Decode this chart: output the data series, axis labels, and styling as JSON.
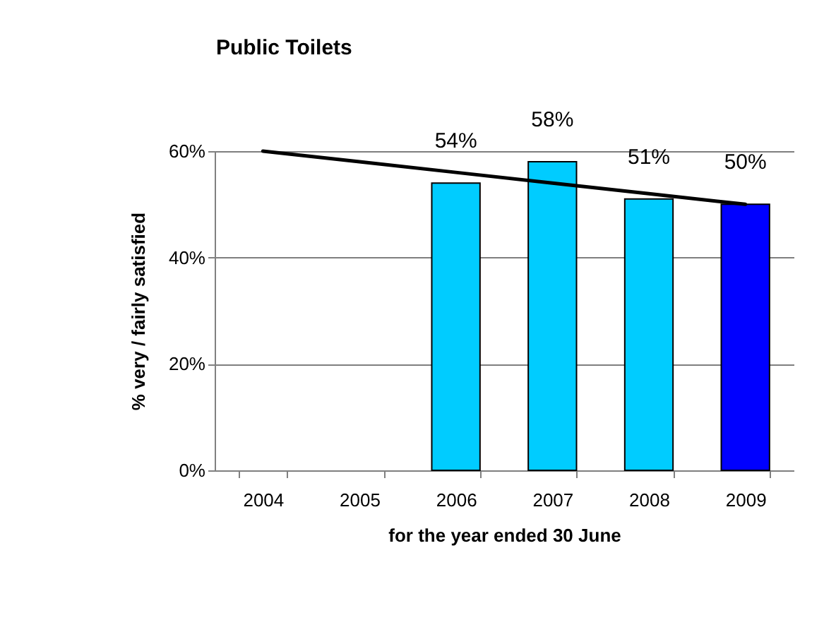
{
  "chart_data": {
    "type": "bar",
    "title": "Public Toilets",
    "xlabel": "for the year ended 30 June",
    "ylabel": "% very / fairly satisfied",
    "categories": [
      "2004",
      "2005",
      "2006",
      "2007",
      "2008",
      "2009"
    ],
    "series": [
      {
        "values": [
          null,
          null,
          54,
          58,
          51,
          50
        ],
        "colors": [
          "#00ccff",
          "#00ccff",
          "#00ccff",
          "#00ccff",
          "#00ccff",
          "#0000ff"
        ],
        "value_labels": [
          null,
          null,
          "54%",
          "58%",
          "51%",
          "50%"
        ]
      },
      {
        "type": "line",
        "color": "#000000",
        "values": [
          60,
          58,
          56,
          54,
          52,
          50
        ]
      }
    ],
    "ylim": [
      0,
      60
    ],
    "yticks": [
      {
        "value": 0,
        "label": "0%"
      },
      {
        "value": 20,
        "label": "20%"
      },
      {
        "value": 40,
        "label": "40%"
      },
      {
        "value": 60,
        "label": "60%"
      }
    ],
    "grid": "y"
  }
}
